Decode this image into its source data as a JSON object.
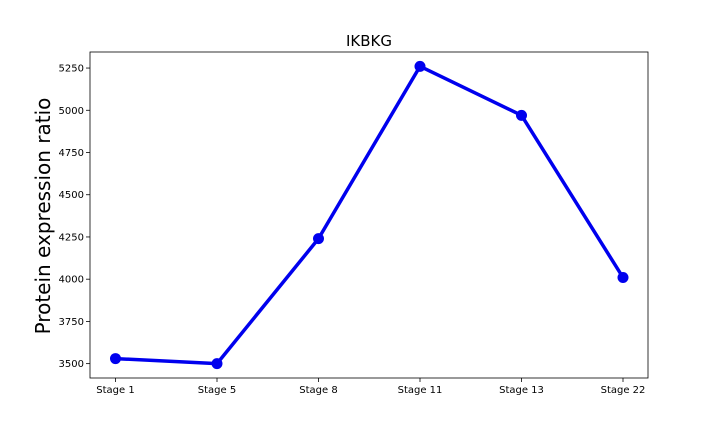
{
  "chart_data": {
    "type": "line",
    "title": "IKBKG",
    "xlabel": "",
    "ylabel": "Protein expression ratio",
    "categories": [
      "Stage 1",
      "Stage 5",
      "Stage 8",
      "Stage 11",
      "Stage 13",
      "Stage 22"
    ],
    "series": [
      {
        "values": [
          3530,
          3500,
          4240,
          5260,
          4970,
          4010
        ],
        "color": "#0000ee"
      }
    ],
    "ylim": [
      3415,
      5345
    ],
    "yticks": [
      3500,
      3750,
      4000,
      4250,
      4500,
      4750,
      5000,
      5250
    ],
    "ytick_labels": [
      "3500",
      "3750",
      "4000",
      "4250",
      "4500",
      "4750",
      "5000",
      "5250"
    ],
    "grid": false,
    "legend": "none"
  }
}
